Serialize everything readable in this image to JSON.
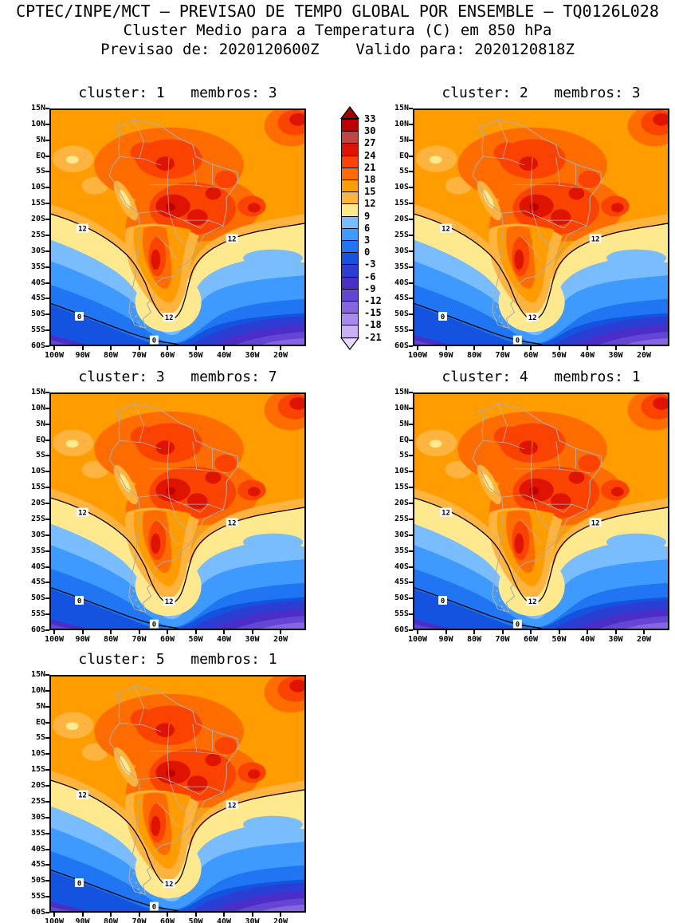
{
  "header": {
    "line1": "CPTEC/INPE/MCT — PREVISAO DE TEMPO GLOBAL POR ENSEMBLE — TQ0126L028",
    "line2": "Cluster Medio para a Temperatura (C) em 850 hPa",
    "line3": "Previsao de: 2020120600Z    Valido para: 2020120818Z"
  },
  "panels": [
    {
      "title": "cluster: 1   membros: 3",
      "cluster": 1,
      "membros": 3
    },
    {
      "title": "cluster: 2   membros: 3",
      "cluster": 2,
      "membros": 3
    },
    {
      "title": "cluster: 3   membros: 7",
      "cluster": 3,
      "membros": 7
    },
    {
      "title": "cluster: 4   membros: 1",
      "cluster": 4,
      "membros": 1
    },
    {
      "title": "cluster: 5   membros: 1",
      "cluster": 5,
      "membros": 1
    }
  ],
  "axes": {
    "lat": [
      "15N",
      "10N",
      "5N",
      "EQ",
      "5S",
      "10S",
      "15S",
      "20S",
      "25S",
      "30S",
      "35S",
      "40S",
      "45S",
      "50S",
      "55S",
      "60S"
    ],
    "lon": [
      "100W",
      "90W",
      "80W",
      "70W",
      "60W",
      "50W",
      "40W",
      "30W",
      "20W"
    ]
  },
  "colorbar": {
    "labels": [
      "33",
      "30",
      "27",
      "24",
      "21",
      "18",
      "15",
      "12",
      "9",
      "6",
      "3",
      "0",
      "-3",
      "-6",
      "-9",
      "-12",
      "-15",
      "-18",
      "-21"
    ],
    "colors": [
      "#BE0000",
      "#C24545",
      "#DE1400",
      "#FA4300",
      "#FF6C00",
      "#FF9C00",
      "#FFB440",
      "#FFE98E",
      "#79BDFF",
      "#3E9AFF",
      "#2076F2",
      "#1353E0",
      "#2B3DD3",
      "#4A2EC7",
      "#6546D4",
      "#8765E2",
      "#A98AEE",
      "#CBB0F6"
    ],
    "arrow_top": "#A00000",
    "arrow_bottom": "#E6DBFB"
  },
  "map": {
    "label_12": "12",
    "label_0": "0"
  },
  "palette": {
    "t30_33": "#BE0000",
    "t27_30": "#C24545",
    "t24_27": "#DE1400",
    "t21_24": "#FA4300",
    "t18_21": "#FF6C00",
    "t15_18": "#FF9C00",
    "t12_15": "#FFB440",
    "t9_12": "#FFE98E",
    "t6_9": "#79BDFF",
    "t3_6": "#3E9AFF",
    "t0_3": "#2076F2",
    "tm3_0": "#1353E0",
    "tm6_m3": "#2B3DD3",
    "tm9_m6": "#4A2EC7",
    "tm12_m9": "#6546D4",
    "tm15_m12": "#8765E2",
    "coast": "#ABABAB",
    "border": "#B5B5B5"
  },
  "chart_data": {
    "type": "heatmap",
    "title": "CPTEC/INPE/MCT — PREVISAO DE TEMPO GLOBAL POR ENSEMBLE — TQ0126L028",
    "subtitle": "Cluster Medio para a Temperatura (C) em 850 hPa",
    "forecast_init": "2020120600Z",
    "forecast_valid": "2020120818Z",
    "variable": "Temperatura (C) em 850 hPa",
    "panels": [
      {
        "cluster": 1,
        "membros": 3
      },
      {
        "cluster": 2,
        "membros": 3
      },
      {
        "cluster": 3,
        "membros": 7
      },
      {
        "cluster": 4,
        "membros": 1
      },
      {
        "cluster": 5,
        "membros": 1
      }
    ],
    "x_tick_labels": [
      "100W",
      "90W",
      "80W",
      "70W",
      "60W",
      "50W",
      "40W",
      "30W",
      "20W"
    ],
    "y_tick_labels": [
      "15N",
      "10N",
      "5N",
      "EQ",
      "5S",
      "10S",
      "15S",
      "20S",
      "25S",
      "30S",
      "35S",
      "40S",
      "45S",
      "50S",
      "55S",
      "60S"
    ],
    "colorbar_levels_C": [
      33,
      30,
      27,
      24,
      21,
      18,
      15,
      12,
      9,
      6,
      3,
      0,
      -3,
      -6,
      -9,
      -12,
      -15,
      -18,
      -21
    ],
    "labeled_contours_C": [
      12,
      0
    ],
    "legend_position": "between panel 1 and panel 2, vertical",
    "grid": false,
    "region": "South America, approx 100W-15W, 15N-60S"
  }
}
